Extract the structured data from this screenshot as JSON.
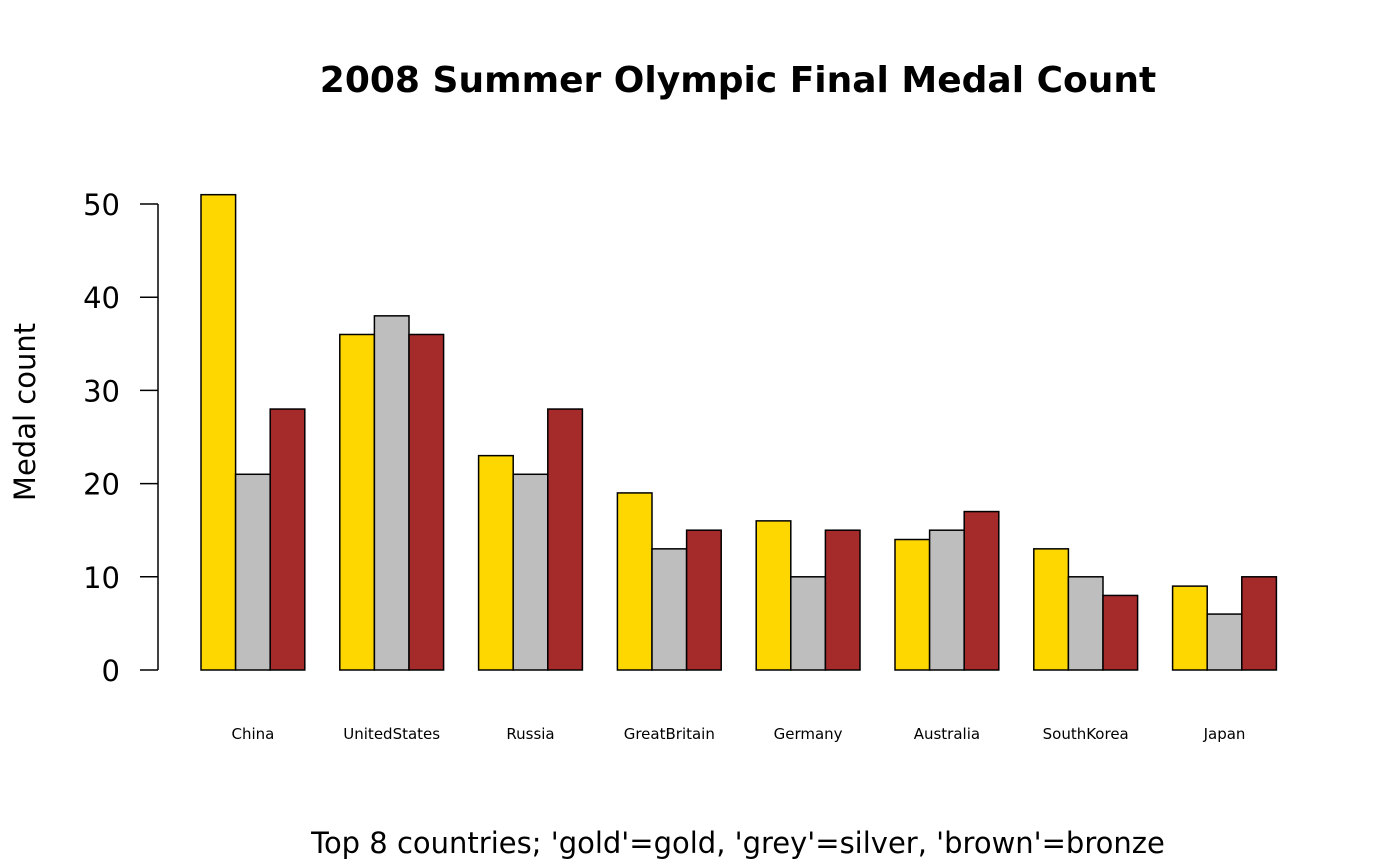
{
  "chart_data": {
    "type": "bar",
    "title": "2008 Summer Olympic Final Medal Count",
    "xlabel": "Top 8 countries; 'gold'=gold, 'grey'=silver, 'brown'=bronze",
    "ylabel": "Medal count",
    "categories": [
      "China",
      "UnitedStates",
      "Russia",
      "GreatBritain",
      "Germany",
      "Australia",
      "SouthKorea",
      "Japan"
    ],
    "series": [
      {
        "color": "#FFD700",
        "values": [
          51,
          36,
          23,
          19,
          16,
          14,
          13,
          9
        ]
      },
      {
        "color": "#BEBEBE",
        "values": [
          21,
          38,
          21,
          13,
          10,
          15,
          10,
          6
        ]
      },
      {
        "color": "#A52A2A",
        "values": [
          28,
          36,
          28,
          15,
          15,
          17,
          8,
          10
        ]
      }
    ],
    "ylim": [
      0,
      50
    ],
    "yticks": [
      "0",
      "10",
      "20",
      "30",
      "40",
      "50"
    ],
    "grid": false,
    "legend": "none"
  }
}
